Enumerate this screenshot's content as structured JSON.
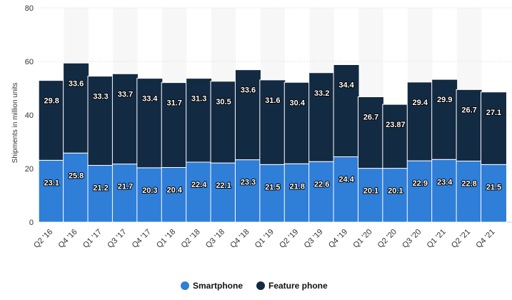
{
  "chart_data": {
    "type": "bar",
    "stacked": true,
    "title": "",
    "xlabel": "",
    "ylabel": "Shipments in million units",
    "ylim": [
      0,
      80
    ],
    "yticks": [
      0,
      20,
      40,
      60,
      80
    ],
    "grid": true,
    "legend_position": "bottom",
    "categories": [
      "Q2 '16",
      "Q4 '16",
      "Q1 '17",
      "Q3 '17",
      "Q4 '17",
      "Q1 '18",
      "Q2 '18",
      "Q3 '18",
      "Q4 '18",
      "Q1 '19",
      "Q2 '19",
      "Q3 '19",
      "Q4 '19",
      "Q1 '20",
      "Q2 '20",
      "Q3 '20",
      "Q1 '21",
      "Q2 '21",
      "Q4 '21"
    ],
    "series": [
      {
        "name": "Smartphone",
        "color": "#2f7ed8",
        "values": [
          23.1,
          25.8,
          21.2,
          21.7,
          20.3,
          20.4,
          22.4,
          22.1,
          23.3,
          21.5,
          21.8,
          22.6,
          24.4,
          20.1,
          20.1,
          22.9,
          23.4,
          22.8,
          21.5
        ],
        "labels": [
          "23.1",
          "25.8",
          "21.2",
          "21.7",
          "20.3",
          "20.4",
          "22.4",
          "22.1",
          "23.3",
          "21.5",
          "21.8",
          "22.6",
          "24.4",
          "20.1",
          "20.1",
          "22.9",
          "23.4",
          "22.8",
          "21.5"
        ]
      },
      {
        "name": "Feature phone",
        "color": "#132a43",
        "values": [
          29.8,
          33.6,
          33.3,
          33.7,
          33.4,
          31.7,
          31.3,
          30.5,
          33.6,
          31.6,
          30.4,
          33.2,
          34.4,
          26.7,
          23.87,
          29.4,
          29.9,
          26.7,
          27.1
        ],
        "labels": [
          "29.8",
          "33.6",
          "33.3",
          "33.7",
          "33.4",
          "31.7",
          "31.3",
          "30.5",
          "33.6",
          "31.6",
          "30.4",
          "33.2",
          "34.4",
          "26.7",
          "23.87",
          "29.4",
          "29.9",
          "26.7",
          "27.1"
        ]
      }
    ]
  }
}
